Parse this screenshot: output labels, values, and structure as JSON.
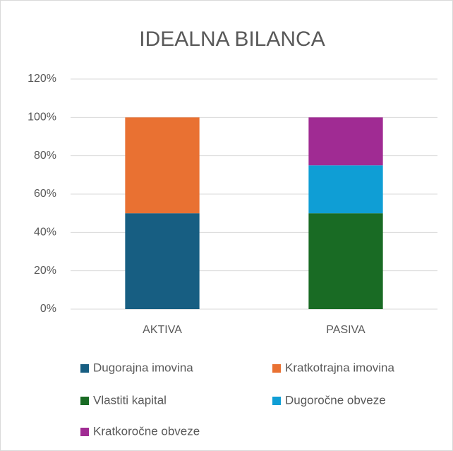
{
  "chart_data": {
    "type": "stacked_bar",
    "title": "IDEALNA BILANCA",
    "categories": [
      "AKTIVA",
      "PASIVA"
    ],
    "series": [
      {
        "name": "Dugorajna imovina",
        "color": "#175e82",
        "values": [
          50,
          0
        ]
      },
      {
        "name": "Kratkotrajna imovina",
        "color": "#e97132",
        "values": [
          50,
          0
        ]
      },
      {
        "name": "Vlastiti kapital",
        "color": "#196b24",
        "values": [
          0,
          50
        ]
      },
      {
        "name": "Dugoročne obveze",
        "color": "#0f9ed5",
        "values": [
          0,
          25
        ]
      },
      {
        "name": "Kratkoročne obveze",
        "color": "#a02b93",
        "values": [
          0,
          25
        ]
      }
    ],
    "ylim": [
      0,
      120
    ],
    "yticks": [
      {
        "value": 0,
        "label": "0%"
      },
      {
        "value": 20,
        "label": "20%"
      },
      {
        "value": 40,
        "label": "40%"
      },
      {
        "value": 60,
        "label": "60%"
      },
      {
        "value": 80,
        "label": "80%"
      },
      {
        "value": 100,
        "label": "100%"
      },
      {
        "value": 120,
        "label": "120%"
      }
    ],
    "grid": true,
    "legend": "bottom"
  }
}
